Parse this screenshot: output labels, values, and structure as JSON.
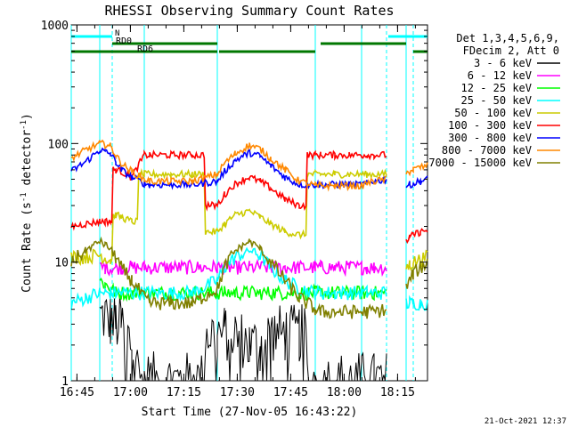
{
  "chart_data": {
    "type": "line",
    "title": "RHESSI Observing Summary Count Rates",
    "xlabel": "Start Time (27-Nov-05 16:43:22)",
    "ylabel": "Count Rate (s⁻¹ detector⁻¹)",
    "ylabel_parts": {
      "main": "Count Rate (s",
      "sup1": "-1",
      "mid": " detector",
      "sup2": "-1",
      "end": ")"
    },
    "y_scale": "log",
    "ylim": [
      1,
      1000
    ],
    "xlim_minutes": [
      0,
      100
    ],
    "x_tick_labels": [
      {
        "label": "16:45",
        "t": 1.6
      },
      {
        "label": "17:00",
        "t": 16.6
      },
      {
        "label": "17:15",
        "t": 31.6
      },
      {
        "label": "17:30",
        "t": 46.6
      },
      {
        "label": "17:45",
        "t": 61.6
      },
      {
        "label": "18:00",
        "t": 76.6
      },
      {
        "label": "18:15",
        "t": 91.6
      }
    ],
    "y_tick_labels": [
      {
        "label": "1",
        "value": 1
      },
      {
        "label": "10",
        "value": 10
      },
      {
        "label": "100",
        "value": 100
      },
      {
        "label": "1000",
        "value": 1000
      }
    ],
    "legend_header": [
      "Det 1,3,4,5,6,9,",
      "FDecim 2, Att 0"
    ],
    "legend_position": "right",
    "timestamp": "21-Oct-2021 12:37",
    "flags": [
      {
        "label": "N",
        "color": "#00ffff",
        "segments": [
          [
            0,
            11.5
          ],
          [
            89,
            100
          ]
        ]
      },
      {
        "label": "RD0",
        "color": "#007700",
        "segments": [
          [
            11.5,
            41
          ],
          [
            70,
            94
          ]
        ]
      },
      {
        "label": "RD6",
        "color": "#007700",
        "segments": [
          [
            0,
            41
          ],
          [
            41.5,
            68.5
          ],
          [
            96,
            100
          ]
        ]
      }
    ],
    "vertical_markers": [
      {
        "t": 0,
        "style": "solid",
        "color": "#00ffff"
      },
      {
        "t": 8,
        "style": "solid",
        "color": "#00ffff"
      },
      {
        "t": 11.5,
        "style": "dashed",
        "color": "#00ffff"
      },
      {
        "t": 20.5,
        "style": "solid",
        "color": "#00ffff"
      },
      {
        "t": 41,
        "style": "solid",
        "color": "#00ffff"
      },
      {
        "t": 68.5,
        "style": "solid",
        "color": "#00ffff"
      },
      {
        "t": 81.5,
        "style": "solid",
        "color": "#00ffff"
      },
      {
        "t": 88.5,
        "style": "dashed",
        "color": "#00ffff"
      },
      {
        "t": 94,
        "style": "solid",
        "color": "#00ffff"
      },
      {
        "t": 96,
        "style": "dashed",
        "color": "#00ffff"
      }
    ],
    "data_gaps": [
      [
        0,
        8
      ],
      [
        88.5,
        94
      ]
    ],
    "x": [
      0,
      4,
      8,
      9.5,
      11,
      12.5,
      14,
      17,
      20.5,
      22,
      28,
      34,
      41,
      43,
      46,
      50,
      53,
      56,
      60,
      64,
      68.5,
      70,
      74,
      78,
      81.5,
      83,
      85,
      88.5,
      90,
      92,
      94,
      95,
      96,
      98,
      100
    ],
    "series": [
      {
        "name": "3 - 6 keV",
        "color": "#000000",
        "values": [
          null,
          null,
          3.5,
          3.5,
          3.2,
          3.0,
          3.0,
          2.0,
          1.0,
          1.0,
          1.0,
          1.0,
          2.5,
          2.5,
          2.5,
          2.0,
          2.0,
          2.5,
          2.5,
          2.5,
          1.0,
          1.0,
          1.0,
          1.0,
          1.0,
          1.0,
          1.0,
          1.0,
          null,
          null,
          null,
          null,
          null,
          null,
          null
        ]
      },
      {
        "name": "6 - 12 keV",
        "color": "#ff00ff",
        "values": [
          null,
          null,
          9.0,
          9.0,
          9.0,
          9.0,
          9.0,
          9.0,
          9.0,
          9.0,
          9.0,
          9.0,
          9.0,
          9.0,
          9.0,
          9.0,
          9.0,
          9.0,
          9.0,
          9.0,
          9.0,
          9.0,
          9.0,
          9.0,
          9.0,
          9.0,
          9.0,
          9.0,
          null,
          null,
          null,
          null,
          null,
          null,
          null
        ]
      },
      {
        "name": "12 - 25 keV",
        "color": "#00ff00",
        "values": [
          null,
          null,
          7.0,
          6.5,
          6.0,
          5.5,
          5.5,
          5.5,
          5.5,
          5.5,
          5.5,
          5.5,
          5.5,
          5.5,
          5.5,
          5.5,
          5.5,
          5.5,
          5.5,
          5.5,
          5.5,
          5.5,
          5.5,
          5.5,
          5.5,
          5.5,
          5.5,
          5.5,
          null,
          null,
          null,
          null,
          null,
          null,
          null
        ]
      },
      {
        "name": "25 - 50 keV",
        "color": "#00ffff",
        "values": [
          4.5,
          5.0,
          5.5,
          5.5,
          5.5,
          5.5,
          5.5,
          5.5,
          5.5,
          5.5,
          5.5,
          5.5,
          7.0,
          9.0,
          11.0,
          12.5,
          11.5,
          9.0,
          7.0,
          6.0,
          5.5,
          5.5,
          5.5,
          5.5,
          5.5,
          5.5,
          5.5,
          5.5,
          null,
          null,
          4.5,
          4.5,
          4.5,
          4.5,
          4.5
        ]
      },
      {
        "name": "50 - 100 keV",
        "color": "#cccc00",
        "values": [
          11.0,
          11.0,
          11.5,
          11.0,
          10.5,
          25.0,
          24.0,
          22.0,
          55.0,
          55.0,
          55.0,
          55.0,
          18.0,
          21.0,
          25.0,
          27.0,
          24.0,
          21.0,
          18.0,
          17.0,
          55.0,
          55.0,
          55.0,
          55.0,
          55.0,
          55.0,
          55.0,
          55.0,
          null,
          null,
          9.0,
          9.5,
          10.0,
          10.5,
          11.0
        ]
      },
      {
        "name": "100 - 300 keV",
        "color": "#ff0000",
        "values": [
          20.0,
          21.0,
          22.0,
          22.0,
          22.0,
          60.0,
          58.0,
          52.0,
          80.0,
          80.0,
          80.0,
          80.0,
          30.0,
          37.0,
          46.0,
          52.0,
          48.0,
          42.0,
          34.0,
          30.0,
          80.0,
          80.0,
          80.0,
          80.0,
          80.0,
          80.0,
          80.0,
          80.0,
          null,
          null,
          15.0,
          16.0,
          17.0,
          18.0,
          18.5
        ]
      },
      {
        "name": "300 - 800 keV",
        "color": "#0000ff",
        "values": [
          58.0,
          70.0,
          88.0,
          85.0,
          82.0,
          70.0,
          60.0,
          52.0,
          46.0,
          45.0,
          45.0,
          45.0,
          48.0,
          58.0,
          72.0,
          84.0,
          78.0,
          65.0,
          52.0,
          45.0,
          45.0,
          45.0,
          45.0,
          45.0,
          45.0,
          46.0,
          48.0,
          50.0,
          null,
          null,
          44.0,
          45.0,
          46.0,
          48.0,
          50.0
        ]
      },
      {
        "name": "800 - 7000 keV",
        "color": "#ff8800",
        "values": [
          75.0,
          88.0,
          100.0,
          98.0,
          95.0,
          80.0,
          68.0,
          58.0,
          50.0,
          48.0,
          48.0,
          48.0,
          55.0,
          68.0,
          82.0,
          97.0,
          90.0,
          75.0,
          60.0,
          48.0,
          44.0,
          44.0,
          44.0,
          44.0,
          44.0,
          46.0,
          48.0,
          50.0,
          null,
          null,
          55.0,
          58.0,
          60.0,
          63.0,
          65.0
        ]
      },
      {
        "name": "7000 - 15000 keV",
        "color": "#808000",
        "values": [
          10.0,
          12.5,
          15.0,
          14.0,
          13.0,
          11.0,
          9.0,
          7.0,
          5.0,
          4.5,
          4.5,
          4.5,
          6.0,
          9.0,
          12.5,
          15.0,
          13.0,
          10.0,
          7.0,
          5.0,
          4.0,
          3.8,
          3.8,
          3.8,
          3.8,
          3.8,
          3.8,
          4.0,
          null,
          null,
          6.0,
          7.0,
          8.0,
          9.0,
          10.0
        ]
      }
    ]
  }
}
